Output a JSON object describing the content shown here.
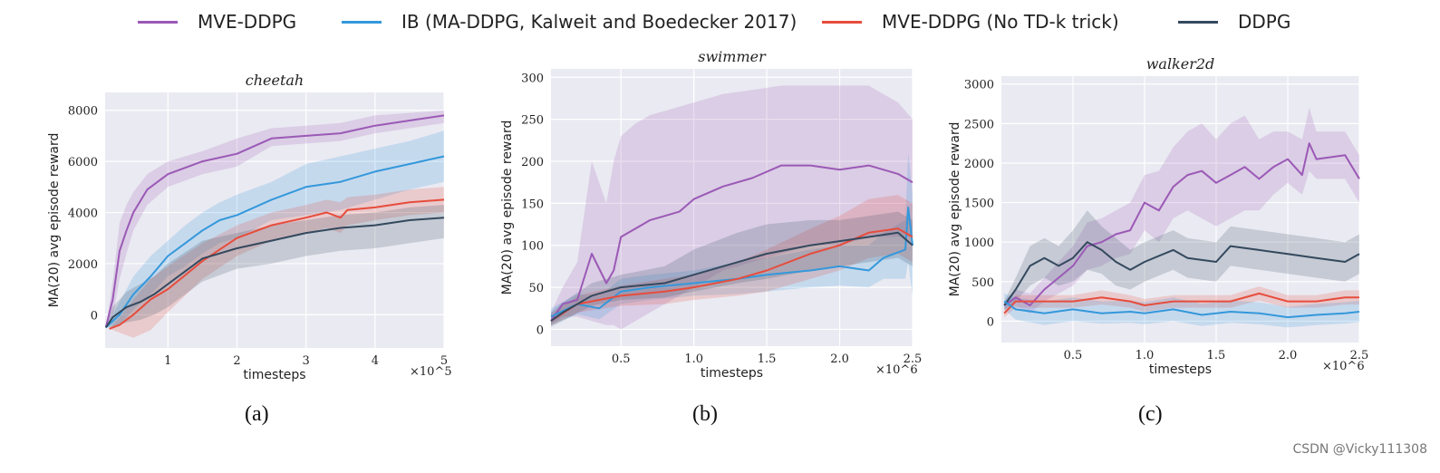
{
  "legend": [
    {
      "label": "MVE-DDPG",
      "color": "#9b59b6"
    },
    {
      "label": "IB (MA-DDPG, Kalweit and Boedecker 2017)",
      "color": "#3498db"
    },
    {
      "label": "MVE-DDPG (No TD-k trick)",
      "color": "#e74c3c"
    },
    {
      "label": "DDPG",
      "color": "#34495e"
    }
  ],
  "captions": [
    "(a)",
    "(b)",
    "(c)"
  ],
  "watermark": "CSDN @Vicky111308",
  "chart_data": [
    {
      "type": "line",
      "title": "cheetah",
      "xlabel": "timesteps",
      "x_multiplier": "×10^5",
      "ylabel": "MA(20) avg episode reward",
      "xlim": [
        0.09,
        5.0
      ],
      "ylim": [
        -1300,
        8700
      ],
      "xticks": [
        1,
        2,
        3,
        4,
        5
      ],
      "xtick_labels": [
        "1",
        "2",
        "3",
        "4",
        "5"
      ],
      "yticks": [
        0,
        2000,
        4000,
        6000,
        8000
      ],
      "ytick_labels": [
        "0",
        "2000",
        "4000",
        "6000",
        "8000"
      ],
      "grid": true,
      "series": [
        {
          "name": "MVE-DDPG",
          "x": [
            0.1,
            0.2,
            0.3,
            0.4,
            0.5,
            0.7,
            1.0,
            1.5,
            2.0,
            2.5,
            3.0,
            3.5,
            4.0,
            4.5,
            5.0
          ],
          "y": [
            -500,
            600,
            2500,
            3300,
            4000,
            4900,
            5500,
            6000,
            6300,
            6900,
            7000,
            7100,
            7400,
            7600,
            7800
          ],
          "lower": [
            -500,
            -100,
            1400,
            2400,
            3300,
            4300,
            5000,
            5500,
            5800,
            6600,
            6700,
            6800,
            7100,
            7300,
            7500
          ],
          "upper": [
            -500,
            1300,
            3600,
            4300,
            4800,
            5500,
            6000,
            6400,
            6900,
            7300,
            7400,
            7500,
            7800,
            7900,
            8000
          ]
        },
        {
          "name": "IB (MA-DDPG, Kalweit and Boedecker 2017)",
          "x": [
            0.1,
            0.3,
            0.5,
            0.75,
            1.0,
            1.25,
            1.5,
            1.75,
            2.0,
            2.5,
            3.0,
            3.5,
            4.0,
            4.5,
            5.0
          ],
          "y": [
            -500,
            0,
            800,
            1500,
            2300,
            2800,
            3300,
            3700,
            3900,
            4500,
            5000,
            5200,
            5600,
            5900,
            6200
          ],
          "lower": [
            -500,
            -400,
            200,
            800,
            1500,
            1900,
            2400,
            2800,
            3000,
            3700,
            3900,
            4100,
            4500,
            4900,
            5200
          ],
          "upper": [
            -500,
            500,
            1500,
            2300,
            2900,
            3500,
            4000,
            4400,
            4700,
            5200,
            5900,
            6200,
            6500,
            6800,
            7200
          ]
        },
        {
          "name": "MVE-DDPG (No TD-k trick)",
          "x": [
            0.15,
            0.3,
            0.5,
            0.75,
            1.0,
            1.5,
            2.0,
            2.5,
            3.0,
            3.3,
            3.5,
            3.6,
            4.0,
            4.5,
            5.0
          ],
          "y": [
            -550,
            -400,
            0,
            600,
            1000,
            2100,
            3000,
            3500,
            3800,
            4000,
            3800,
            4100,
            4200,
            4400,
            4500
          ],
          "lower": [
            -550,
            -700,
            -900,
            -600,
            100,
            1400,
            2300,
            2900,
            3200,
            3400,
            3200,
            3500,
            3700,
            3900,
            4000
          ],
          "upper": [
            -550,
            -100,
            600,
            1400,
            1900,
            2800,
            3500,
            4000,
            4300,
            4500,
            4400,
            4600,
            4700,
            4900,
            5000
          ]
        },
        {
          "name": "DDPG",
          "x": [
            0.1,
            0.2,
            0.4,
            0.6,
            0.8,
            1.0,
            1.5,
            2.0,
            2.5,
            3.0,
            3.5,
            4.0,
            4.5,
            5.0
          ],
          "y": [
            -500,
            -100,
            300,
            500,
            800,
            1200,
            2200,
            2600,
            2900,
            3200,
            3400,
            3500,
            3700,
            3800
          ],
          "lower": [
            -500,
            -500,
            -300,
            -200,
            0,
            300,
            1300,
            1800,
            2000,
            2300,
            2500,
            2600,
            2800,
            3000
          ],
          "upper": [
            -500,
            300,
            900,
            1200,
            1500,
            2000,
            2900,
            3200,
            3500,
            3700,
            3900,
            4000,
            4200,
            4300
          ]
        }
      ]
    },
    {
      "type": "line",
      "title": "swimmer",
      "xlabel": "timesteps",
      "x_multiplier": "×10^6",
      "ylabel": "MA(20) avg episode reward",
      "xlim": [
        0.02,
        2.5
      ],
      "ylim": [
        -20,
        310
      ],
      "xticks": [
        0.5,
        1.0,
        1.5,
        2.0,
        2.5
      ],
      "xtick_labels": [
        "0.5",
        "1.0",
        "1.5",
        "2.0",
        "2.5"
      ],
      "yticks": [
        0,
        50,
        100,
        150,
        200,
        250,
        300
      ],
      "ytick_labels": [
        "0",
        "50",
        "100",
        "150",
        "200",
        "250",
        "300"
      ],
      "grid": true,
      "series": [
        {
          "name": "MVE-DDPG",
          "x": [
            0.02,
            0.1,
            0.2,
            0.3,
            0.4,
            0.45,
            0.5,
            0.6,
            0.7,
            0.8,
            0.9,
            1.0,
            1.2,
            1.4,
            1.6,
            1.8,
            2.0,
            2.2,
            2.4,
            2.5
          ],
          "y": [
            10,
            30,
            35,
            90,
            55,
            70,
            110,
            120,
            130,
            135,
            140,
            155,
            170,
            180,
            195,
            195,
            190,
            195,
            185,
            175
          ],
          "lower": [
            5,
            15,
            15,
            10,
            5,
            5,
            0,
            10,
            20,
            30,
            40,
            50,
            70,
            80,
            90,
            100,
            100,
            110,
            110,
            110
          ],
          "upper": [
            20,
            50,
            80,
            200,
            150,
            200,
            230,
            245,
            255,
            260,
            265,
            270,
            280,
            285,
            290,
            290,
            290,
            290,
            270,
            250
          ]
        },
        {
          "name": "IB (MA-DDPG, Kalweit and Boedecker 2017)",
          "x": [
            0.02,
            0.2,
            0.35,
            0.5,
            0.7,
            1.0,
            1.3,
            1.5,
            1.8,
            2.0,
            2.2,
            2.3,
            2.45,
            2.47,
            2.5
          ],
          "y": [
            15,
            30,
            25,
            45,
            50,
            55,
            60,
            65,
            70,
            75,
            70,
            85,
            95,
            145,
            100
          ],
          "lower": [
            5,
            18,
            12,
            30,
            35,
            40,
            42,
            45,
            50,
            52,
            50,
            60,
            60,
            80,
            40
          ],
          "upper": [
            25,
            42,
            40,
            60,
            65,
            70,
            80,
            85,
            95,
            100,
            100,
            115,
            130,
            210,
            160
          ]
        },
        {
          "name": "MVE-DDPG (No TD-k trick)",
          "x": [
            0.02,
            0.2,
            0.5,
            0.8,
            1.0,
            1.3,
            1.5,
            1.8,
            2.0,
            2.2,
            2.4,
            2.5
          ],
          "y": [
            10,
            30,
            40,
            45,
            50,
            60,
            70,
            90,
            100,
            115,
            120,
            110
          ],
          "lower": [
            5,
            20,
            28,
            30,
            35,
            40,
            45,
            60,
            70,
            85,
            90,
            80
          ],
          "upper": [
            18,
            40,
            52,
            60,
            65,
            80,
            95,
            120,
            135,
            155,
            160,
            150
          ]
        },
        {
          "name": "DDPG",
          "x": [
            0.02,
            0.1,
            0.3,
            0.5,
            0.8,
            1.0,
            1.3,
            1.5,
            1.8,
            2.0,
            2.2,
            2.4,
            2.5
          ],
          "y": [
            10,
            20,
            40,
            50,
            55,
            65,
            80,
            90,
            100,
            105,
            110,
            115,
            100
          ],
          "lower": [
            3,
            10,
            28,
            35,
            38,
            45,
            55,
            60,
            70,
            75,
            80,
            85,
            75
          ],
          "upper": [
            20,
            32,
            55,
            65,
            75,
            95,
            115,
            125,
            130,
            130,
            135,
            140,
            130
          ]
        }
      ]
    },
    {
      "type": "line",
      "title": "walker2d",
      "xlabel": "timesteps",
      "x_multiplier": "×10^6",
      "ylabel": "MA(20) avg episode reward",
      "xlim": [
        0.0,
        2.5
      ],
      "ylim": [
        -270,
        3100
      ],
      "xticks": [
        0.5,
        1.0,
        1.5,
        2.0,
        2.5
      ],
      "xtick_labels": [
        "0.5",
        "1.0",
        "1.5",
        "2.0",
        "2.5"
      ],
      "yticks": [
        0,
        500,
        1000,
        1500,
        2000,
        2500,
        3000
      ],
      "ytick_labels": [
        "0",
        "500",
        "1000",
        "1500",
        "2000",
        "2500",
        "3000"
      ],
      "grid": true,
      "series": [
        {
          "name": "MVE-DDPG",
          "x": [
            0.02,
            0.1,
            0.2,
            0.3,
            0.4,
            0.5,
            0.6,
            0.7,
            0.8,
            0.9,
            1.0,
            1.1,
            1.2,
            1.3,
            1.4,
            1.5,
            1.6,
            1.7,
            1.8,
            1.9,
            2.0,
            2.1,
            2.15,
            2.2,
            2.4,
            2.5
          ],
          "y": [
            200,
            300,
            200,
            400,
            550,
            700,
            950,
            1000,
            1100,
            1150,
            1500,
            1400,
            1700,
            1850,
            1900,
            1750,
            1850,
            1950,
            1800,
            1950,
            2050,
            1850,
            2250,
            2050,
            2100,
            1800
          ],
          "lower": [
            150,
            200,
            100,
            250,
            350,
            450,
            650,
            700,
            800,
            850,
            1150,
            1000,
            1300,
            1400,
            1300,
            1200,
            1300,
            1400,
            1400,
            1600,
            1750,
            1600,
            1900,
            1800,
            1800,
            1500
          ],
          "upper": [
            250,
            400,
            350,
            550,
            750,
            950,
            1250,
            1300,
            1400,
            1500,
            1850,
            1900,
            2200,
            2400,
            2500,
            2300,
            2500,
            2600,
            2300,
            2400,
            2400,
            2300,
            2700,
            2400,
            2400,
            2100
          ]
        },
        {
          "name": "DDPG",
          "x": [
            0.02,
            0.1,
            0.2,
            0.3,
            0.4,
            0.5,
            0.6,
            0.7,
            0.8,
            0.9,
            1.0,
            1.2,
            1.3,
            1.5,
            1.6,
            1.8,
            2.0,
            2.2,
            2.4,
            2.5
          ],
          "y": [
            200,
            400,
            700,
            800,
            700,
            800,
            1000,
            900,
            750,
            650,
            750,
            900,
            800,
            750,
            950,
            900,
            850,
            800,
            750,
            850
          ],
          "lower": [
            150,
            250,
            450,
            550,
            450,
            500,
            650,
            600,
            450,
            400,
            500,
            650,
            550,
            500,
            700,
            650,
            600,
            550,
            500,
            600
          ],
          "upper": [
            250,
            550,
            950,
            1050,
            950,
            1150,
            1400,
            1200,
            1050,
            900,
            1000,
            1150,
            1050,
            1000,
            1200,
            1150,
            1100,
            1050,
            1000,
            1100
          ]
        },
        {
          "name": "MVE-DDPG (No TD-k trick)",
          "x": [
            0.02,
            0.1,
            0.3,
            0.5,
            0.7,
            0.9,
            1.0,
            1.2,
            1.4,
            1.6,
            1.8,
            2.0,
            2.2,
            2.4,
            2.5
          ],
          "y": [
            100,
            250,
            250,
            250,
            300,
            250,
            200,
            250,
            250,
            250,
            350,
            250,
            250,
            300,
            300
          ],
          "lower": [
            50,
            170,
            170,
            170,
            210,
            170,
            120,
            170,
            170,
            170,
            260,
            170,
            170,
            210,
            210
          ],
          "upper": [
            160,
            330,
            330,
            330,
            390,
            330,
            280,
            330,
            330,
            330,
            440,
            330,
            330,
            390,
            390
          ]
        },
        {
          "name": "IB (MA-DDPG, Kalweit and Boedecker 2017)",
          "x": [
            0.02,
            0.1,
            0.3,
            0.5,
            0.7,
            0.9,
            1.0,
            1.2,
            1.4,
            1.6,
            1.8,
            2.0,
            2.2,
            2.4,
            2.5
          ],
          "y": [
            250,
            150,
            100,
            150,
            100,
            120,
            100,
            150,
            80,
            120,
            100,
            50,
            80,
            100,
            120
          ],
          "lower": [
            150,
            20,
            -50,
            0,
            -30,
            -20,
            -40,
            0,
            -60,
            -20,
            -40,
            -80,
            -50,
            -30,
            -10
          ],
          "upper": [
            350,
            300,
            250,
            300,
            250,
            260,
            240,
            300,
            220,
            260,
            240,
            180,
            220,
            240,
            260
          ]
        }
      ]
    }
  ]
}
